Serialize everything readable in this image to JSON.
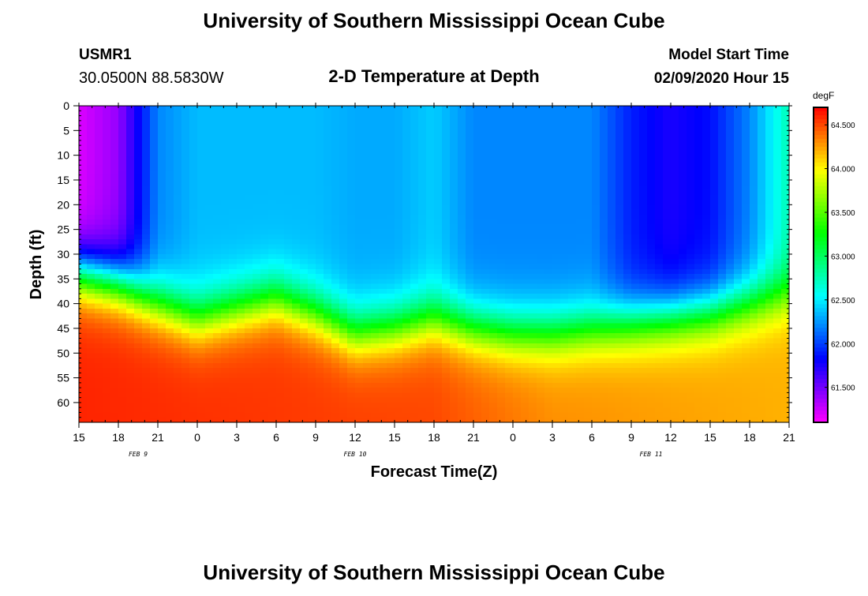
{
  "chart_data": {
    "type": "heatmap",
    "title": "University of Southern Mississippi Ocean Cube",
    "footer_title": "University of Southern Mississippi Ocean Cube",
    "subtitle": "2-D Temperature at Depth",
    "station": {
      "name": "USMR1",
      "location": "30.0500N 88.5830W"
    },
    "model_start": {
      "label": "Model Start Time",
      "value": "02/09/2020 Hour 15"
    },
    "xlabel": "Forecast Time(Z)",
    "ylabel": "Depth (ft)",
    "x_hours": [
      0,
      3,
      6,
      9,
      12,
      15,
      18,
      21,
      24,
      27,
      30,
      33,
      36,
      39,
      42,
      45,
      48,
      51,
      54
    ],
    "x_tick_labels": [
      "15",
      "18",
      "21",
      "0",
      "3",
      "6",
      "9",
      "12",
      "15",
      "18",
      "21",
      "0",
      "3",
      "6",
      "9",
      "12",
      "15",
      "18",
      "21"
    ],
    "xlim": [
      0,
      54
    ],
    "date_labels": [
      {
        "text": "FEB 9",
        "hour": 4.5
      },
      {
        "text": "FEB 10",
        "hour": 21
      },
      {
        "text": "FEB 11",
        "hour": 43.5
      }
    ],
    "y_ticks": [
      0,
      5,
      10,
      15,
      20,
      25,
      30,
      35,
      40,
      45,
      50,
      55,
      60
    ],
    "ylim": [
      0,
      64
    ],
    "colorbar": {
      "unit": "degF",
      "range": [
        61.1,
        64.7
      ],
      "ticks": [
        "61.500",
        "62.000",
        "62.500",
        "63.000",
        "63.500",
        "64.000",
        "64.500"
      ]
    },
    "interface_depth_ft": {
      "hours": [
        0,
        3,
        6,
        9,
        12,
        15,
        18,
        21,
        24,
        27,
        30,
        33,
        36,
        39,
        42,
        45,
        48,
        51,
        54
      ],
      "values": [
        34,
        36,
        40,
        43,
        41,
        39,
        42,
        46,
        45,
        43,
        45,
        46,
        46,
        45,
        44,
        43,
        42,
        40,
        38
      ]
    },
    "surface_temperature_degF": {
      "hours": [
        0,
        3,
        6,
        9,
        12,
        15,
        18,
        21,
        24,
        27,
        30,
        33,
        36,
        39,
        42,
        45,
        48,
        51,
        54
      ],
      "values": [
        61.2,
        61.4,
        62.2,
        62.35,
        62.35,
        62.35,
        62.35,
        62.3,
        62.3,
        62.4,
        62.2,
        62.2,
        62.2,
        62.2,
        61.9,
        61.75,
        61.85,
        62.2,
        62.75
      ]
    },
    "deep_temperature_degF": {
      "hours": [
        0,
        27,
        36,
        54
      ],
      "values": [
        64.6,
        64.5,
        64.3,
        64.2
      ]
    }
  }
}
